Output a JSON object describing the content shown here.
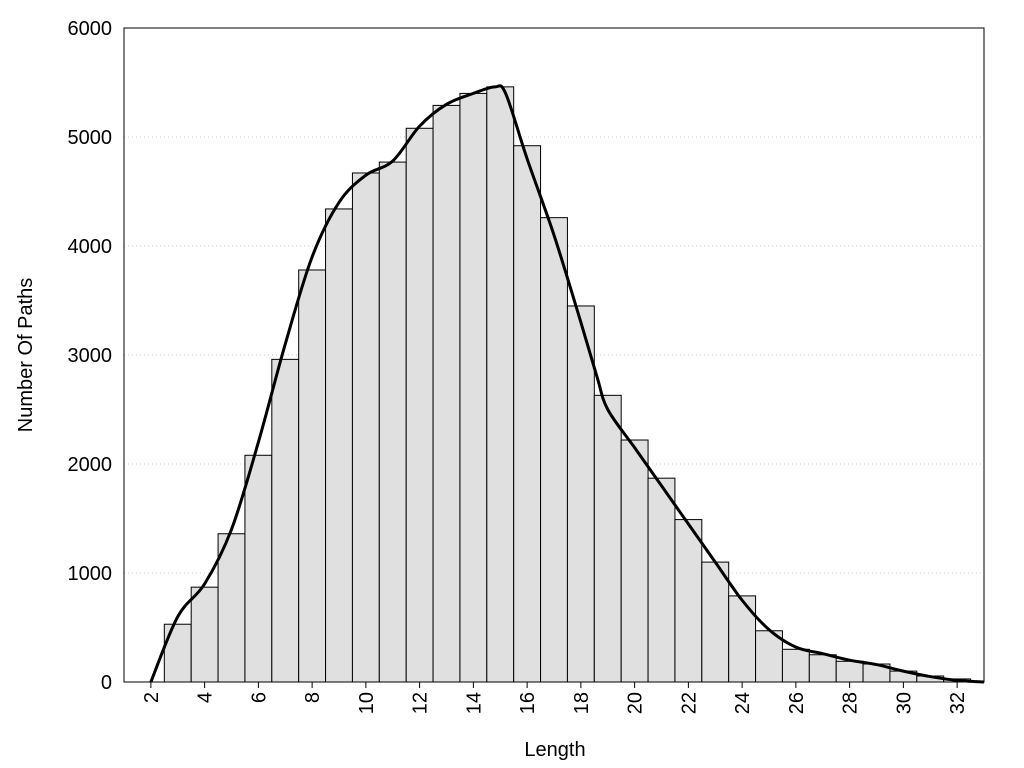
{
  "chart_data": {
    "type": "histogram",
    "xlabel": "Length",
    "ylabel": "Number Of Paths",
    "bins": [
      2.5,
      3.5,
      4.5,
      5.5,
      6.5,
      7.5,
      8.5,
      9.5,
      10.5,
      11.5,
      12.5,
      13.5,
      14.5,
      15.5,
      16.5,
      17.5,
      18.5,
      19.5,
      20.5,
      21.5,
      22.5,
      23.5,
      24.5,
      25.5,
      26.5,
      27.5,
      28.5,
      29.5,
      30.5,
      31.5,
      32.5
    ],
    "values": [
      530,
      870,
      1360,
      2080,
      2960,
      3780,
      4340,
      4670,
      4770,
      5080,
      5290,
      5400,
      5460,
      4920,
      4260,
      3450,
      2630,
      2220,
      1870,
      1490,
      1100,
      790,
      470,
      300,
      250,
      190,
      165,
      100,
      55,
      28
    ],
    "color": "#e0e0e0",
    "line": {
      "x": [
        2,
        3,
        4,
        5,
        6,
        7,
        8,
        9,
        10,
        11,
        12,
        13,
        14,
        14.8,
        15.2,
        16,
        17,
        18,
        18.6,
        19,
        20,
        21,
        22,
        23,
        24,
        25,
        26,
        27,
        28,
        29,
        30,
        31,
        32,
        33
      ],
      "y": [
        0,
        600,
        900,
        1400,
        2200,
        3100,
        3900,
        4400,
        4650,
        4780,
        5100,
        5300,
        5400,
        5460,
        5400,
        4800,
        4100,
        3300,
        2800,
        2500,
        2150,
        1800,
        1450,
        1100,
        750,
        480,
        320,
        260,
        200,
        160,
        100,
        50,
        15,
        0
      ],
      "color": "#000000"
    },
    "xlim": [
      1,
      33
    ],
    "ylim": [
      0,
      6000
    ],
    "xticks": [
      2,
      4,
      6,
      8,
      10,
      12,
      14,
      16,
      18,
      20,
      22,
      24,
      26,
      28,
      30,
      32
    ],
    "yticks": [
      0,
      1000,
      2000,
      3000,
      4000,
      5000,
      6000
    ],
    "grid": true
  }
}
